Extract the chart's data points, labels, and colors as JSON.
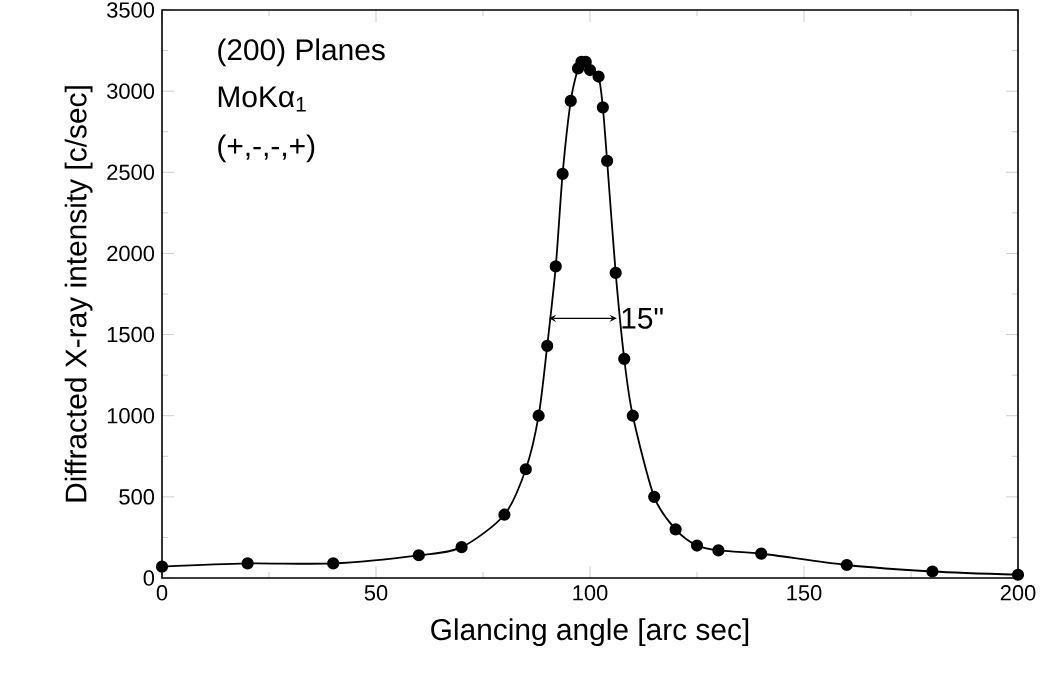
{
  "chart_data": {
    "type": "line",
    "xlabel": "Glancing angle [arc sec]",
    "ylabel": "Diffracted X-ray intensity [c/sec]",
    "x": [
      0,
      20,
      40,
      60,
      70,
      80,
      85,
      88,
      90,
      92,
      93.6,
      95.5,
      97.2,
      98,
      99,
      100,
      102,
      103,
      104,
      106,
      108,
      110,
      115,
      120,
      125,
      130,
      140,
      160,
      180,
      200
    ],
    "values": [
      70,
      90,
      90,
      140,
      190,
      390,
      670,
      1000,
      1430,
      1920,
      2490,
      2940,
      3140,
      3180,
      3180,
      3130,
      3090,
      2900,
      2570,
      1880,
      1350,
      1000,
      500,
      300,
      200,
      170,
      150,
      80,
      40,
      20
    ],
    "color": "#000000",
    "marker": "circle",
    "line_style": "solid",
    "xlim": [
      0,
      200
    ],
    "xticks": [
      0,
      50,
      100,
      150,
      200
    ],
    "ylim": [
      0,
      3500
    ],
    "yticks": [
      0,
      500,
      1000,
      1500,
      2000,
      2500,
      3000,
      3500
    ],
    "annotations": [
      "(200) Planes",
      "MoKα$_{1}$",
      "(+,-,-,+)",
      {
        "text": "15\"",
        "x": 106.5,
        "y": 1600
      }
    ]
  }
}
